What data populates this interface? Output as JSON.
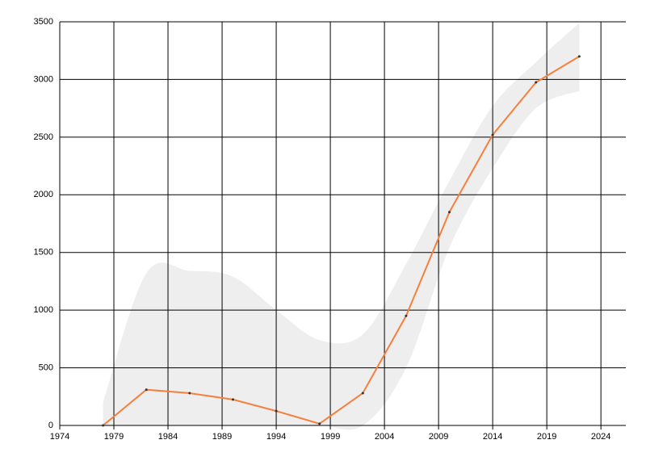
{
  "chart_data": {
    "type": "line",
    "x": [
      1978,
      1982,
      1986,
      1990,
      1994,
      1998,
      2002,
      2006,
      2010,
      2014,
      2018,
      2022
    ],
    "series": [
      {
        "color": "#f5803e",
        "values": [
          0,
          310,
          280,
          225,
          125,
          15,
          280,
          950,
          1850,
          2520,
          2975,
          3200
        ]
      }
    ],
    "band": {
      "color": "#eeeeee",
      "upper": [
        200,
        1320,
        1340,
        1290,
        1000,
        740,
        790,
        1400,
        2120,
        2770,
        3150,
        3490
      ],
      "lower": [
        0,
        0,
        0,
        0,
        0,
        0,
        0,
        500,
        1540,
        2230,
        2750,
        2900
      ]
    },
    "xlim": [
      1974,
      2026.3
    ],
    "xticks": [
      1974,
      1979,
      1984,
      1989,
      1994,
      1999,
      2004,
      2009,
      2014,
      2019,
      2024
    ],
    "ylim": [
      0,
      3500
    ],
    "yticks": [
      0,
      500,
      1000,
      1500,
      2000,
      2500,
      3000,
      3500
    ],
    "grid": true
  }
}
